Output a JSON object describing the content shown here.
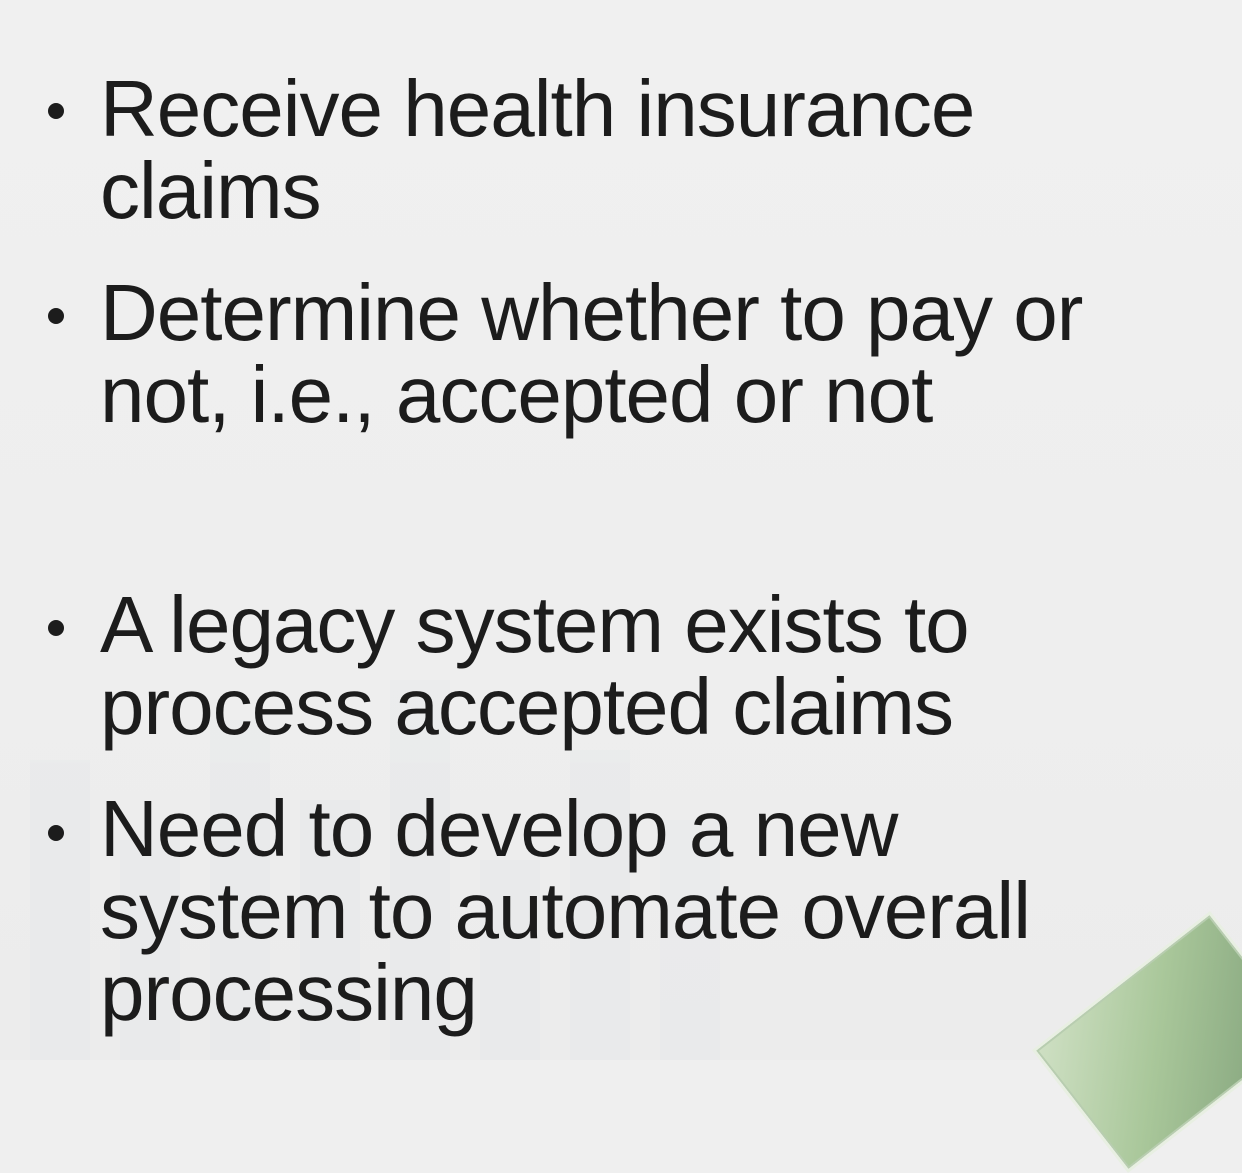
{
  "bullets": [
    {
      "lines": [
        "Receive health insurance",
        "claims"
      ]
    },
    {
      "lines": [
        "Determine whether to pay or",
        "not, i.e., accepted or not"
      ]
    },
    {
      "lines": [
        "A legacy system exists to",
        "process accepted claims"
      ]
    },
    {
      "lines": [
        "Need to develop a new",
        "system to automate overall",
        "processing"
      ]
    }
  ]
}
